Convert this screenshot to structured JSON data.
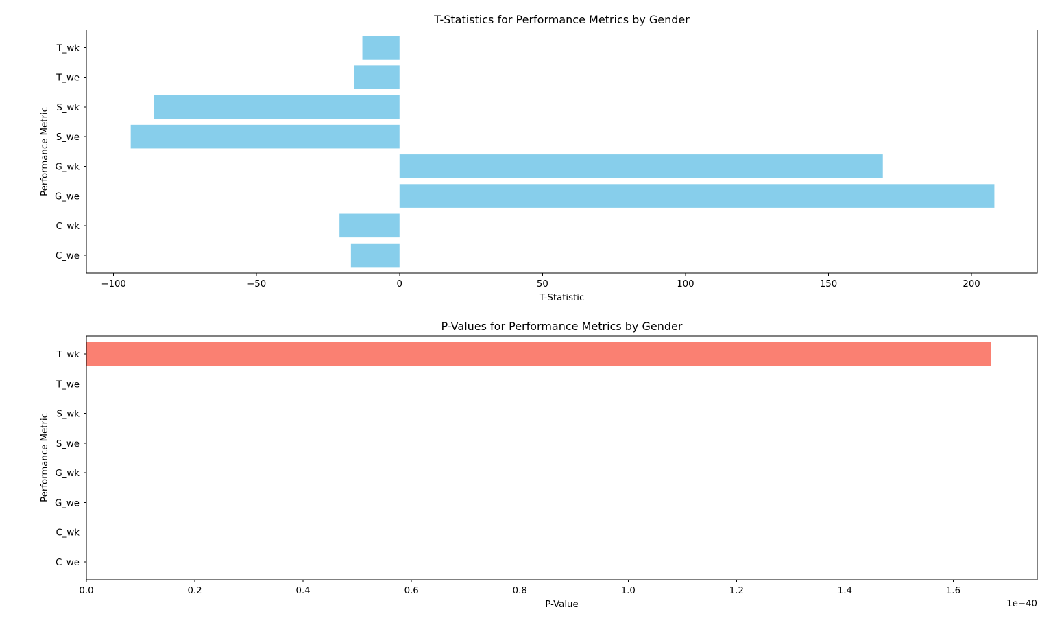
{
  "chart_data": [
    {
      "type": "bar",
      "orientation": "horizontal",
      "title": "T-Statistics for Performance Metrics by Gender",
      "xlabel": "T-Statistic",
      "ylabel": "Performance Metric",
      "categories": [
        "C_we",
        "C_wk",
        "G_we",
        "G_wk",
        "S_we",
        "S_wk",
        "T_we",
        "T_wk"
      ],
      "values": [
        -17,
        -21,
        208,
        169,
        -94,
        -86,
        -16,
        -13
      ],
      "xlim": [
        -109.5,
        223
      ],
      "xticks": [
        -100,
        -50,
        0,
        50,
        100,
        150,
        200
      ],
      "xtick_labels": [
        "−100",
        "−50",
        "0",
        "50",
        "100",
        "150",
        "200"
      ],
      "offset_label": "",
      "bar_color": "#87ceeb",
      "grid": false,
      "legend": false
    },
    {
      "type": "bar",
      "orientation": "horizontal",
      "title": "P-Values for Performance Metrics by Gender",
      "xlabel": "P-Value",
      "ylabel": "Performance Metric",
      "categories": [
        "C_we",
        "C_wk",
        "G_we",
        "G_wk",
        "S_we",
        "S_wk",
        "T_we",
        "T_wk"
      ],
      "values": [
        0,
        0,
        0,
        0,
        0,
        0,
        0,
        1.67e-40
      ],
      "xlim": [
        0,
        1.755e-40
      ],
      "xticks": [
        0,
        2e-41,
        4e-41,
        6e-41,
        8e-41,
        1e-40,
        1.2e-40,
        1.4e-40,
        1.6e-40
      ],
      "xtick_labels": [
        "0.0",
        "0.2",
        "0.4",
        "0.6",
        "0.8",
        "1.0",
        "1.2",
        "1.4",
        "1.6"
      ],
      "offset_label": "1e−40",
      "bar_color": "#fa8072",
      "grid": false,
      "legend": false
    }
  ]
}
